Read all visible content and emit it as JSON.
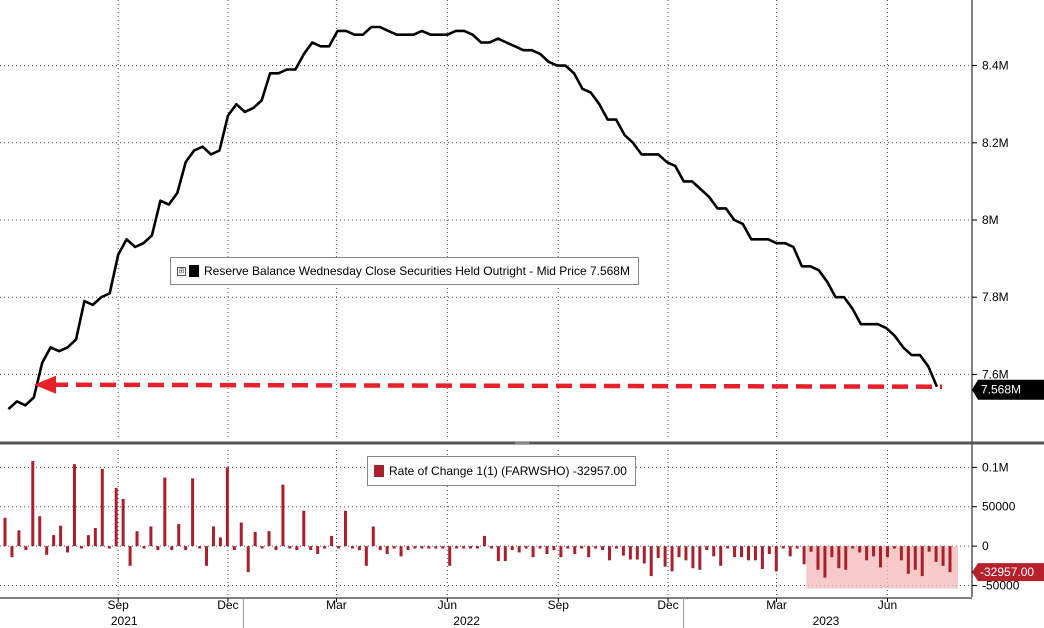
{
  "colors": {
    "line": "#000000",
    "bars": "#a8202c",
    "arrow": "#e8202a",
    "highlight": "#f4b8b8",
    "last_value_box": "#000000",
    "neg_value_box": "#b5202b"
  },
  "legend_top": {
    "expander": "⊞",
    "text": "Reserve Balance Wednesday Close Securities Held Outright - Mid Price 7.568M"
  },
  "legend_bottom": {
    "text": "Rate of Change 1(1) (FARWSHO) -32957.00"
  },
  "chart_data": [
    {
      "type": "line",
      "series": [
        {
          "name": "Reserve Balance Wednesday Close Securities Held Outright - Mid Price",
          "x": [
            "2021-06-16",
            "2021-06-23",
            "2021-06-30",
            "2021-07-07",
            "2021-07-14",
            "2021-07-21",
            "2021-07-28",
            "2021-08-04",
            "2021-08-11",
            "2021-08-18",
            "2021-08-25",
            "2021-09-01",
            "2021-09-08",
            "2021-09-15",
            "2021-09-22",
            "2021-09-29",
            "2021-10-06",
            "2021-10-13",
            "2021-10-20",
            "2021-10-27",
            "2021-11-03",
            "2021-11-10",
            "2021-11-17",
            "2021-11-24",
            "2021-12-01",
            "2021-12-08",
            "2021-12-15",
            "2021-12-22",
            "2021-12-29",
            "2022-01-05",
            "2022-01-12",
            "2022-01-19",
            "2022-01-26",
            "2022-02-02",
            "2022-02-09",
            "2022-02-16",
            "2022-02-23",
            "2022-03-02",
            "2022-03-09",
            "2022-03-16",
            "2022-03-23",
            "2022-03-30",
            "2022-04-06",
            "2022-04-13",
            "2022-04-20",
            "2022-04-27",
            "2022-05-04",
            "2022-05-11",
            "2022-05-18",
            "2022-05-25",
            "2022-06-01",
            "2022-06-08",
            "2022-06-15",
            "2022-06-22",
            "2022-06-29",
            "2022-07-06",
            "2022-07-13",
            "2022-07-20",
            "2022-07-27",
            "2022-08-03",
            "2022-08-10",
            "2022-08-17",
            "2022-08-24",
            "2022-08-31",
            "2022-09-07",
            "2022-09-14",
            "2022-09-21",
            "2022-09-28",
            "2022-10-05",
            "2022-10-12",
            "2022-10-19",
            "2022-10-26",
            "2022-11-02",
            "2022-11-09",
            "2022-11-16",
            "2022-11-23",
            "2022-11-30",
            "2022-12-07",
            "2022-12-14",
            "2022-12-21",
            "2022-12-28",
            "2023-01-04",
            "2023-01-11",
            "2023-01-18",
            "2023-01-25",
            "2023-02-01",
            "2023-02-08",
            "2023-02-15",
            "2023-02-22",
            "2023-03-01",
            "2023-03-08",
            "2023-03-15",
            "2023-03-22",
            "2023-03-29",
            "2023-04-05",
            "2023-04-12",
            "2023-04-19",
            "2023-04-26",
            "2023-05-03",
            "2023-05-10",
            "2023-05-17",
            "2023-05-24",
            "2023-05-31",
            "2023-06-07",
            "2023-06-14",
            "2023-06-21",
            "2023-06-28",
            "2023-07-05",
            "2023-07-12",
            "2023-07-19",
            "2023-07-26"
          ],
          "y": [
            7.51,
            7.53,
            7.52,
            7.54,
            7.63,
            7.67,
            7.66,
            7.67,
            7.69,
            7.79,
            7.78,
            7.8,
            7.81,
            7.91,
            7.95,
            7.93,
            7.94,
            7.96,
            8.05,
            8.04,
            8.07,
            8.15,
            8.18,
            8.19,
            8.17,
            8.18,
            8.27,
            8.3,
            8.28,
            8.29,
            8.31,
            8.38,
            8.38,
            8.39,
            8.39,
            8.43,
            8.46,
            8.45,
            8.45,
            8.49,
            8.49,
            8.48,
            8.48,
            8.5,
            8.5,
            8.49,
            8.48,
            8.48,
            8.48,
            8.49,
            8.48,
            8.48,
            8.48,
            8.49,
            8.49,
            8.48,
            8.46,
            8.46,
            8.47,
            8.46,
            8.45,
            8.44,
            8.44,
            8.43,
            8.41,
            8.4,
            8.4,
            8.38,
            8.34,
            8.33,
            8.3,
            8.26,
            8.26,
            8.22,
            8.2,
            8.17,
            8.17,
            8.17,
            8.15,
            8.14,
            8.1,
            8.1,
            8.08,
            8.06,
            8.03,
            8.03,
            8.0,
            7.99,
            7.95,
            7.95,
            7.95,
            7.94,
            7.94,
            7.93,
            7.88,
            7.88,
            7.87,
            7.84,
            7.8,
            7.8,
            7.77,
            7.73,
            7.73,
            7.73,
            7.72,
            7.7,
            7.67,
            7.65,
            7.65,
            7.62,
            7.568
          ]
        }
      ],
      "ylim": [
        7.43,
        8.57
      ],
      "yticks": [
        "8.4M",
        "8.2M",
        "8M",
        "7.8M",
        "7.6M"
      ],
      "last_value": "7.568M",
      "annotation": "red dashed arrow at 7.568M level pointing back to July 2021",
      "grid": true
    },
    {
      "type": "bar",
      "series": [
        {
          "name": "Rate of Change 1(1) (FARWSHO)",
          "values": [
            36000,
            -14000,
            20000,
            -5000,
            108000,
            38000,
            -11000,
            14000,
            26000,
            -8000,
            104000,
            -3000,
            14000,
            23000,
            98000,
            -3000,
            74000,
            60000,
            -25000,
            19000,
            -3000,
            25000,
            -5000,
            87000,
            -5000,
            28000,
            -5000,
            86000,
            -3000,
            -25000,
            25000,
            11000,
            100000,
            -5000,
            30000,
            -33000,
            18000,
            -3000,
            19000,
            -5000,
            78000,
            -3000,
            -5000,
            45000,
            -5000,
            -10000,
            -3000,
            13000,
            -3000,
            45000,
            -3000,
            -5000,
            -25000,
            25000,
            -5000,
            -10000,
            -3000,
            -13000,
            -5000,
            -3000,
            -3000,
            -3000,
            -3000,
            -3000,
            -25000,
            -3000,
            -3000,
            -3000,
            -3000,
            13000,
            -3000,
            -19000,
            -19000,
            -5000,
            -8000,
            -3000,
            -14000,
            -3000,
            -10000,
            -5000,
            -14000,
            -3000,
            -10000,
            -3000,
            -14000,
            -3000,
            -5000,
            -18000,
            -3000,
            -12000,
            -17000,
            -17000,
            -22000,
            -38000,
            -15000,
            -26000,
            -32000,
            -14000,
            -18000,
            -28000,
            -30000,
            -5000,
            -13000,
            -25000,
            -3000,
            -14000,
            -14000,
            -18000,
            -18000,
            -29000,
            -10000,
            -32000,
            -3000,
            -13000,
            -3000,
            -23000,
            -7000,
            -30000,
            -40000,
            -14000,
            -28000,
            -30000,
            -3000,
            -8000,
            -18000,
            -13000,
            -27000,
            -14000,
            -3000,
            -18000,
            -35000,
            -30000,
            -38000,
            -7000,
            -20000,
            -25000,
            -32957
          ]
        }
      ],
      "ylim": [
        -62000,
        122000
      ],
      "yticks": [
        "0.1M",
        "50000",
        "0",
        "-50000"
      ],
      "last_value": "-32957.00",
      "highlight_from": "2023-04"
    }
  ],
  "x_axis": {
    "months": [
      "Sep",
      "Dec",
      "Mar",
      "Jun",
      "Sep",
      "Dec",
      "Mar",
      "Jun"
    ],
    "years": [
      "2021",
      "2022",
      "2023"
    ]
  }
}
